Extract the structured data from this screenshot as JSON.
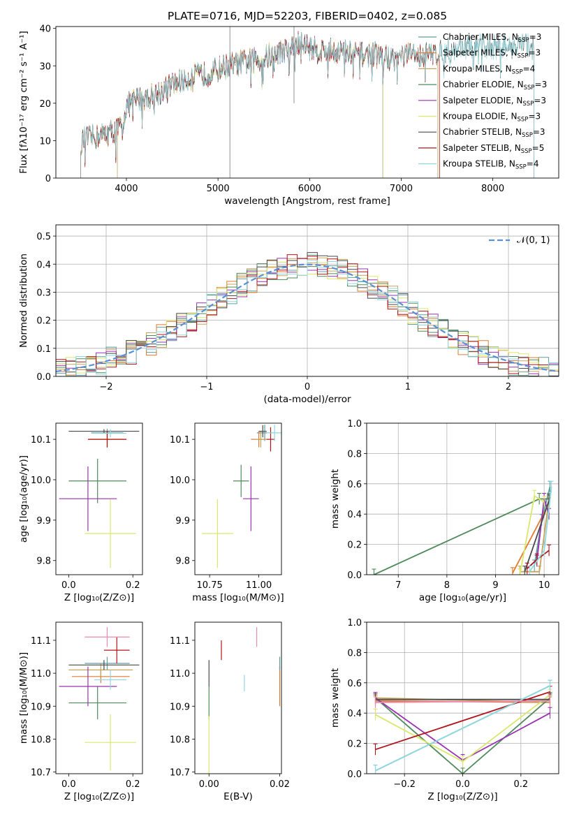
{
  "figure": {
    "title": "PLATE=0716, MJD=52203, FIBERID=0402, z=0.085"
  },
  "colors": {
    "Chabrier MILES": "#5f9ea0",
    "Salpeter MILES": "#e07a2e",
    "Kroupa MILES": "#c8a35a",
    "Chabrier ELODIE": "#4f8a5b",
    "Salpeter ELODIE": "#9b32b0",
    "Kroupa ELODIE": "#d9e86a",
    "Chabrier STELIB": "#4a4a4a",
    "Salpeter STELIB": "#b0141a",
    "Kroupa STELIB": "#8fd8e0",
    "normal_curve": "#5b8fd6"
  },
  "chart_data": [
    {
      "type": "line",
      "panel": "spectrum",
      "xlabel": "wavelength [Angstrom, rest frame]",
      "ylabel": "Flux [fλ10⁻¹⁷ erg cm⁻² s⁻¹ A⁻¹]",
      "xlim": [
        3230,
        8720
      ],
      "ylim": [
        0,
        40.5
      ],
      "xticks": [
        "4000",
        "5000",
        "6000",
        "7000",
        "8000"
      ],
      "yticks": [
        "0",
        "10",
        "20",
        "30",
        "40"
      ],
      "grid": false,
      "legend_placement": "upper-right",
      "legend": [
        {
          "label": "Chabrier MILES, N",
          "sub": "SSP",
          "suffix": "=3"
        },
        {
          "label": "Salpeter MILES, N",
          "sub": "SSP",
          "suffix": "=3"
        },
        {
          "label": "Kroupa MILES, N",
          "sub": "SSP",
          "suffix": "=4"
        },
        {
          "label": "Chabrier ELODIE, N",
          "sub": "SSP",
          "suffix": "=3"
        },
        {
          "label": "Salpeter ELODIE, N",
          "sub": "SSP",
          "suffix": "=3"
        },
        {
          "label": "Kroupa ELODIE, N",
          "sub": "SSP",
          "suffix": "=3"
        },
        {
          "label": "Chabrier STELIB, N",
          "sub": "SSP",
          "suffix": "=3"
        },
        {
          "label": "Salpeter STELIB, N",
          "sub": "SSP",
          "suffix": "=5"
        },
        {
          "label": "Kroupa STELIB, N",
          "sub": "SSP",
          "suffix": "=4"
        }
      ],
      "continuum": {
        "x": [
          3500,
          3650,
          3800,
          3900,
          3950,
          4000,
          4100,
          4300,
          4500,
          4700,
          4900,
          5100,
          5300,
          5500,
          5700,
          5900,
          6100,
          6300,
          6500,
          6700,
          6900,
          7100,
          7300,
          7500,
          7700,
          7900,
          8100,
          8300,
          8450
        ],
        "y": [
          10,
          11,
          12,
          13,
          14,
          19,
          21,
          22,
          25,
          27,
          28,
          30,
          31,
          32,
          34,
          36,
          34,
          34,
          33,
          33,
          32,
          33,
          33,
          34,
          35,
          35,
          35,
          36,
          35
        ]
      },
      "wavelength_ranges": [
        {
          "name": "Chabrier MILES",
          "start": 3500,
          "end": 7400
        },
        {
          "name": "Salpeter MILES",
          "start": 3500,
          "end": 7420
        },
        {
          "name": "Kroupa MILES",
          "start": 3500,
          "end": 7400
        },
        {
          "name": "Chabrier ELODIE",
          "start": 3900,
          "end": 6800
        },
        {
          "name": "Salpeter ELODIE",
          "start": 3900,
          "end": 6800
        },
        {
          "name": "Kroupa ELODIE",
          "start": 3900,
          "end": 6800
        },
        {
          "name": "Chabrier STELIB",
          "start": 3500,
          "end": 8450
        },
        {
          "name": "Salpeter STELIB",
          "start": 3500,
          "end": 7420
        },
        {
          "name": "Kroupa STELIB",
          "start": 3500,
          "end": 8450
        }
      ]
    },
    {
      "type": "histogram",
      "panel": "residuals",
      "xlabel": "(data-model)/error",
      "ylabel": "Normed distribution",
      "xlim": [
        -2.5,
        2.5
      ],
      "ylim": [
        0,
        0.54
      ],
      "xticks": [
        "−2",
        "−1",
        "0",
        "1",
        "2"
      ],
      "yticks": [
        "0.0",
        "0.1",
        "0.2",
        "0.3",
        "0.4",
        "0.5"
      ],
      "grid": true,
      "bin_width": 0.1,
      "reference_curve": {
        "label": "𝒩(0, 1)",
        "mean": 0,
        "sigma": 1
      },
      "series": [
        "Chabrier MILES",
        "Salpeter MILES",
        "Kroupa MILES",
        "Chabrier ELODIE",
        "Salpeter ELODIE",
        "Kroupa ELODIE",
        "Chabrier STELIB",
        "Salpeter STELIB",
        "Kroupa STELIB"
      ]
    },
    {
      "type": "scatter",
      "panel": "age_vs_Z",
      "xlabel": "Z [log₁₀(Z/Z⊙)]",
      "ylabel": "age [log₁₀(age/yr)]",
      "xlim": [
        -0.04,
        0.23
      ],
      "ylim": [
        9.765,
        10.14
      ],
      "xticks": [
        "0.0",
        "0.2"
      ],
      "yticks": [
        "9.8",
        "9.9",
        "10.0",
        "10.1"
      ],
      "points": [
        {
          "name": "Chabrier MILES",
          "x": 0.12,
          "xerr": 0.05,
          "y": 10.116,
          "yerr": 0.01
        },
        {
          "name": "Salpeter MILES",
          "x": 0.12,
          "xerr": 0.06,
          "y": 10.1,
          "yerr": 0.02
        },
        {
          "name": "Kroupa MILES",
          "x": 0.12,
          "xerr": 0.06,
          "y": 10.1,
          "yerr": 0.02
        },
        {
          "name": "Chabrier ELODIE",
          "x": 0.09,
          "xerr": 0.09,
          "y": 9.997,
          "yerr": 0.055
        },
        {
          "name": "Salpeter ELODIE",
          "x": 0.06,
          "xerr": 0.09,
          "y": 9.953,
          "yerr": 0.08
        },
        {
          "name": "Kroupa ELODIE",
          "x": 0.13,
          "xerr": 0.08,
          "y": 9.867,
          "yerr": 0.085
        },
        {
          "name": "Chabrier STELIB",
          "x": 0.11,
          "xerr": 0.11,
          "y": 10.12,
          "yerr": 0.005
        },
        {
          "name": "Salpeter STELIB",
          "x": 0.12,
          "xerr": 0.06,
          "y": 10.1,
          "yerr": 0.02
        },
        {
          "name": "Kroupa STELIB",
          "x": 0.13,
          "xerr": 0.05,
          "y": 10.115,
          "yerr": 0.01
        }
      ]
    },
    {
      "type": "scatter",
      "panel": "age_vs_mass",
      "xlabel": "mass [log₁₀(M/M⊙)]",
      "ylabel": "",
      "xlim": [
        10.675,
        11.115
      ],
      "ylim": [
        9.765,
        10.14
      ],
      "xticks": [
        "10.75",
        "11.00"
      ],
      "yticks": [
        "9.8",
        "9.9",
        "10.0",
        "10.1"
      ],
      "points": [
        {
          "name": "Chabrier MILES",
          "x": 11.03,
          "xerr": 0.04,
          "y": 10.116,
          "yerr": 0.02
        },
        {
          "name": "Salpeter MILES",
          "x": 11.0,
          "xerr": 0.04,
          "y": 10.1,
          "yerr": 0.02
        },
        {
          "name": "Kroupa MILES",
          "x": 11.01,
          "xerr": 0.03,
          "y": 10.1,
          "yerr": 0.02
        },
        {
          "name": "Chabrier ELODIE",
          "x": 10.91,
          "xerr": 0.04,
          "y": 9.997,
          "yerr": 0.04
        },
        {
          "name": "Salpeter ELODIE",
          "x": 10.96,
          "xerr": 0.04,
          "y": 9.953,
          "yerr": 0.08
        },
        {
          "name": "Kroupa ELODIE",
          "x": 10.79,
          "xerr": 0.08,
          "y": 9.867,
          "yerr": 0.085
        },
        {
          "name": "Chabrier STELIB",
          "x": 11.02,
          "xerr": 0.02,
          "y": 10.12,
          "yerr": 0.015
        },
        {
          "name": "Salpeter STELIB",
          "x": 11.06,
          "xerr": 0.02,
          "y": 10.1,
          "yerr": 0.03
        },
        {
          "name": "Kroupa STELIB",
          "x": 11.08,
          "xerr": 0.04,
          "y": 10.116,
          "yerr": 0.02
        }
      ]
    },
    {
      "type": "line",
      "panel": "weight_vs_age",
      "xlabel": "age [log₁₀(age/yr)]",
      "ylabel": "mass weight",
      "xlim": [
        6.35,
        10.3
      ],
      "ylim": [
        0,
        1
      ],
      "xticks": [
        "7",
        "8",
        "9",
        "10"
      ],
      "yticks": [
        "0.0",
        "0.2",
        "0.4",
        "0.6",
        "0.8",
        "1.0"
      ],
      "grid": true,
      "series": [
        {
          "name": "Chabrier MILES",
          "x": [
            9.8,
            9.95,
            10.12
          ],
          "y": [
            0.06,
            0.36,
            0.58
          ]
        },
        {
          "name": "Salpeter MILES",
          "x": [
            9.35,
            10.1
          ],
          "y": [
            0.01,
            0.47
          ]
        },
        {
          "name": "Kroupa MILES",
          "x": [
            9.5,
            9.9,
            10.1
          ],
          "y": [
            0.02,
            0.02,
            0.5
          ]
        },
        {
          "name": "Chabrier ELODIE",
          "x": [
            6.5,
            9.9,
            10.1
          ],
          "y": [
            0.0,
            0.5,
            0.5
          ]
        },
        {
          "name": "Salpeter ELODIE",
          "x": [
            9.85,
            10.0,
            10.1
          ],
          "y": [
            0.09,
            0.5,
            0.4
          ]
        },
        {
          "name": "Kroupa ELODIE",
          "x": [
            9.5,
            9.8,
            10.0
          ],
          "y": [
            0.0,
            0.52,
            0.48
          ]
        },
        {
          "name": "Chabrier STELIB",
          "x": [
            9.6,
            10.1
          ],
          "y": [
            0.02,
            0.49
          ]
        },
        {
          "name": "Salpeter STELIB",
          "x": [
            9.65,
            9.85,
            10.1
          ],
          "y": [
            0.04,
            0.1,
            0.16
          ]
        },
        {
          "name": "Kroupa STELIB",
          "x": [
            9.7,
            10.0,
            10.15
          ],
          "y": [
            0.02,
            0.16,
            0.58
          ]
        }
      ]
    },
    {
      "type": "scatter",
      "panel": "mass_vs_Z",
      "xlabel": "Z [log₁₀(Z/Z⊙)]",
      "ylabel": "mass [log₁₀(M/M⊙)]",
      "xlim": [
        -0.04,
        0.23
      ],
      "ylim": [
        10.695,
        11.155
      ],
      "xticks": [
        "0.0",
        "0.2"
      ],
      "yticks": [
        "10.7",
        "10.8",
        "10.9",
        "11.0",
        "11.1"
      ],
      "points": [
        {
          "name": "Chabrier MILES",
          "x": 0.12,
          "xerr": 0.07,
          "y": 11.03,
          "yerr": 0.02
        },
        {
          "name": "Salpeter MILES",
          "x": 0.1,
          "xerr": 0.09,
          "y": 10.99,
          "yerr": 0.02
        },
        {
          "name": "Kroupa MILES",
          "x": 0.1,
          "xerr": 0.1,
          "y": 11.01,
          "yerr": 0.02
        },
        {
          "name": "Chabrier ELODIE",
          "x": 0.09,
          "xerr": 0.09,
          "y": 10.91,
          "yerr": 0.05
        },
        {
          "name": "Salpeter ELODIE",
          "x": 0.06,
          "xerr": 0.09,
          "y": 10.96,
          "yerr": 0.06
        },
        {
          "name": "Kroupa ELODIE",
          "x": 0.13,
          "xerr": 0.08,
          "y": 10.79,
          "yerr": 0.085
        },
        {
          "name": "Chabrier STELIB",
          "x": 0.11,
          "xerr": 0.11,
          "y": 11.025,
          "yerr": 0.015
        },
        {
          "name": "Salpeter STELIB",
          "x": 0.15,
          "xerr": 0.04,
          "y": 11.07,
          "yerr": 0.04
        },
        {
          "name": "Kroupa STELIB",
          "x": 0.13,
          "xerr": 0.05,
          "y": 10.98,
          "yerr": 0.03
        },
        {
          "name": "Pink",
          "x": 0.12,
          "xerr": 0.07,
          "y": 11.11,
          "yerr": 0.03
        }
      ]
    },
    {
      "type": "scatter",
      "panel": "mass_vs_ebv",
      "xlabel": "E(B-V)",
      "ylabel": "",
      "xlim": [
        -0.004,
        0.0205
      ],
      "ylim": [
        10.695,
        11.155
      ],
      "xticks": [
        "0.00",
        "0.02"
      ],
      "yticks": [
        "10.7",
        "10.8",
        "10.9",
        "11.0",
        "11.1"
      ],
      "points": [
        {
          "name": "Chabrier ELODIE",
          "x": 0.0,
          "y": 10.91,
          "yerr": 0.05
        },
        {
          "name": "Chabrier STELIB",
          "x": 0.0,
          "y": 11.0,
          "yerr": 0.04
        },
        {
          "name": "Kroupa ELODIE",
          "x": 0.0,
          "y": 10.78,
          "yerr": 0.09
        },
        {
          "name": "Salpeter STELIB",
          "x": 0.0035,
          "y": 11.07,
          "yerr": 0.03
        },
        {
          "name": "Kroupa STELIB",
          "x": 0.01,
          "y": 10.97,
          "yerr": 0.025
        },
        {
          "name": "Pink",
          "x": 0.0135,
          "y": 11.11,
          "yerr": 0.03
        },
        {
          "name": "Salpeter MILES",
          "x": 0.02,
          "y": 10.96,
          "yerr": 0.06
        },
        {
          "name": "Chabrier MILES",
          "x": 0.02,
          "y": 11.03,
          "yerr": 0.02
        }
      ]
    },
    {
      "type": "line",
      "panel": "weight_vs_Z",
      "xlabel": "Z [log₁₀(Z/Z⊙)]",
      "ylabel": "mass weight",
      "xlim": [
        -0.33,
        0.33
      ],
      "ylim": [
        0,
        1
      ],
      "xticks": [
        "−0.2",
        "0.0",
        "0.2"
      ],
      "yticks": [
        "0.0",
        "0.2",
        "0.4",
        "0.6",
        "0.8",
        "1.0"
      ],
      "grid": true,
      "series": [
        {
          "name": "Chabrier MILES",
          "x": [
            -0.3,
            0.3
          ],
          "y": [
            0.02,
            0.58
          ]
        },
        {
          "name": "Salpeter MILES",
          "x": [
            -0.3,
            0.3
          ],
          "y": [
            0.48,
            0.47
          ]
        },
        {
          "name": "Kroupa MILES",
          "x": [
            -0.3,
            0.3
          ],
          "y": [
            0.5,
            0.47
          ]
        },
        {
          "name": "Chabrier ELODIE",
          "x": [
            -0.3,
            0.0,
            0.3
          ],
          "y": [
            0.5,
            0.0,
            0.5
          ]
        },
        {
          "name": "Salpeter ELODIE",
          "x": [
            -0.3,
            0.0,
            0.3
          ],
          "y": [
            0.5,
            0.09,
            0.4
          ]
        },
        {
          "name": "Kroupa ELODIE",
          "x": [
            -0.3,
            0.0,
            0.3
          ],
          "y": [
            0.39,
            0.08,
            0.52
          ]
        },
        {
          "name": "Chabrier STELIB",
          "x": [
            -0.3,
            0.3
          ],
          "y": [
            0.49,
            0.49
          ]
        },
        {
          "name": "Salpeter STELIB",
          "x": [
            -0.3,
            0.3
          ],
          "y": [
            0.16,
            0.54
          ]
        },
        {
          "name": "Kroupa STELIB",
          "x": [
            -0.3,
            0.3
          ],
          "y": [
            0.02,
            0.58
          ]
        },
        {
          "name": "Pink",
          "x": [
            -0.3,
            0.3
          ],
          "y": [
            0.47,
            0.48
          ]
        }
      ]
    }
  ]
}
